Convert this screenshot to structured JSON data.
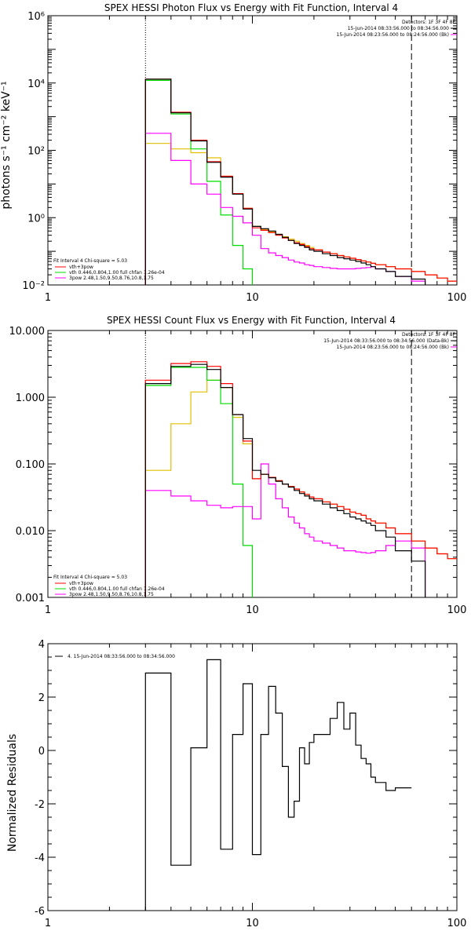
{
  "colors": {
    "data": "#000000",
    "model": "#ff0000",
    "vth": "#00dd00",
    "pow": "#ff00ff",
    "bk": "#e0c000",
    "axis": "#000000"
  },
  "chart_data": [
    {
      "type": "line",
      "title": "SPEX HESSI Photon Flux vs Energy with Fit Function, Interval 4",
      "ylabel": "photons s⁻¹ cm⁻² keV⁻¹",
      "xlabel": "",
      "xscale": "log",
      "yscale": "log",
      "xlim": [
        1,
        100
      ],
      "ylim": [
        0.01,
        1000000
      ],
      "xticks": [
        {
          "v": 1,
          "t": "1"
        },
        {
          "v": 10,
          "t": "10"
        },
        {
          "v": 100,
          "t": "100"
        }
      ],
      "yticks": [
        {
          "v": 0.01,
          "t": "10⁻²"
        },
        {
          "v": 1,
          "t": "10⁰"
        },
        {
          "v": 100,
          "t": "10²"
        },
        {
          "v": 10000,
          "t": "10⁴"
        },
        {
          "v": 1000000,
          "t": "10⁶"
        }
      ],
      "header": {
        "detectors": "Detectors: 1F 3F 4F 8F",
        "time1": "15-Jun-2014 08:33:56.000 to 08:34:56.000",
        "time2": "15-Jun-2014 08:23:56.000 to 08:24:56.000 (Bk)"
      },
      "fit_text": {
        "line1": "Fit Interval 4   Chi-square = 5.03",
        "items": [
          {
            "key": "model",
            "label": "vth+3pow"
          },
          {
            "key": "vth",
            "label": "vth 0.446,0.804,1.00  full chfan 1.26e-04"
          },
          {
            "key": "pow",
            "label": "3pow 2.48,1.50,9.50,8.76,10.8,1.75"
          }
        ]
      },
      "vlines": [
        {
          "x": 3,
          "style": "dotted"
        },
        {
          "x": 60,
          "style": "dashed"
        }
      ],
      "edges": [
        3,
        4,
        5,
        6,
        7,
        8,
        9,
        10,
        11,
        12,
        13,
        14,
        15,
        16,
        17,
        18,
        19,
        20,
        22,
        24,
        26,
        28,
        30,
        32,
        34,
        36,
        38,
        40,
        45,
        50,
        60,
        70,
        80,
        90,
        100
      ],
      "series": [
        {
          "key": "data",
          "values": [
            13000,
            1300,
            190,
            44,
            16,
            5,
            1.8,
            0.55,
            0.47,
            0.4,
            0.32,
            0.26,
            0.21,
            0.17,
            0.15,
            0.13,
            0.11,
            0.1,
            0.085,
            0.075,
            0.065,
            0.06,
            0.055,
            0.05,
            0.045,
            0.04,
            0.035,
            0.03,
            0.025,
            0.018,
            0.015,
            null,
            null,
            null
          ]
        },
        {
          "key": "model",
          "values": [
            13000,
            1350,
            200,
            46,
            17,
            5.2,
            1.9,
            0.5,
            0.42,
            0.36,
            0.3,
            0.25,
            0.21,
            0.18,
            0.16,
            0.14,
            0.12,
            0.11,
            0.095,
            0.085,
            0.075,
            0.068,
            0.062,
            0.057,
            0.052,
            0.048,
            0.044,
            0.04,
            0.035,
            0.03,
            0.025,
            0.02,
            0.016,
            0.013
          ]
        },
        {
          "key": "vth",
          "values": [
            12000,
            1200,
            110,
            12,
            1.2,
            0.15,
            0.03,
            null,
            null,
            null,
            null,
            null,
            null,
            null,
            null,
            null,
            null,
            null,
            null,
            null,
            null,
            null,
            null,
            null,
            null,
            null,
            null,
            null,
            null,
            null,
            null,
            null,
            null,
            null
          ]
        },
        {
          "key": "pow",
          "values": [
            320,
            50,
            10,
            5,
            2,
            1.1,
            0.7,
            0.3,
            0.12,
            0.09,
            0.075,
            0.065,
            0.055,
            0.048,
            0.045,
            0.04,
            0.038,
            0.035,
            0.033,
            0.031,
            0.03,
            0.03,
            0.03,
            0.031,
            0.032,
            0.033,
            0.035,
            0.03,
            0.025,
            0.018,
            0.013,
            null,
            null,
            null
          ]
        },
        {
          "key": "bk",
          "values": [
            160,
            110,
            85,
            60,
            17,
            5.2,
            1.9,
            0.55,
            0.45,
            0.38,
            0.32,
            0.27,
            0.23,
            0.2,
            0.17,
            0.15,
            0.13,
            0.11,
            0.095,
            0.085,
            0.075,
            0.068,
            0.062,
            0.057,
            0.052,
            0.048,
            0.044,
            0.04,
            0.035,
            0.03,
            0.025,
            0.02,
            0.016,
            0.013
          ]
        }
      ]
    },
    {
      "type": "line",
      "title": "SPEX HESSI Count Flux vs Energy with Fit Function, Interval 4",
      "ylabel": "",
      "xlabel": "",
      "xscale": "log",
      "yscale": "log",
      "xlim": [
        1,
        100
      ],
      "ylim": [
        0.001,
        10
      ],
      "xticks": [
        {
          "v": 1,
          "t": "1"
        },
        {
          "v": 10,
          "t": "10"
        },
        {
          "v": 100,
          "t": "100"
        }
      ],
      "yticks": [
        {
          "v": 0.001,
          "t": "0.001"
        },
        {
          "v": 0.01,
          "t": "0.010"
        },
        {
          "v": 0.1,
          "t": "0.100"
        },
        {
          "v": 1,
          "t": "1.000"
        },
        {
          "v": 10,
          "t": "10.000"
        }
      ],
      "header": {
        "detectors": "Detectors: 1F 3F 4F 8F",
        "time1": "15-Jun-2014 08:33:56.000 to 08:34:56.000 (Data-Bk)",
        "time2": "15-Jun-2014 08:23:56.000 to 08:24:56.000 (Bk)"
      },
      "fit_text": {
        "line1": "Fit Interval 4   Chi-square = 5.03",
        "items": [
          {
            "key": "model",
            "label": "vth+3pow"
          },
          {
            "key": "vth",
            "label": "vth 0.446,0.804,1.00  full chfan 1.26e-04"
          },
          {
            "key": "pow",
            "label": "3pow 2.48,1.50,9.50,8.76,10.8,1.75"
          }
        ]
      },
      "vlines": [
        {
          "x": 3,
          "style": "dotted"
        },
        {
          "x": 60,
          "style": "dashed"
        }
      ],
      "edges": [
        3,
        4,
        5,
        6,
        7,
        8,
        9,
        10,
        11,
        12,
        13,
        14,
        15,
        16,
        17,
        18,
        19,
        20,
        22,
        24,
        26,
        28,
        30,
        32,
        34,
        36,
        38,
        40,
        45,
        50,
        60,
        70,
        80,
        90,
        100
      ],
      "series": [
        {
          "key": "data",
          "values": [
            1.6,
            2.9,
            3.1,
            2.6,
            1.4,
            0.55,
            0.24,
            0.08,
            0.07,
            0.062,
            0.055,
            0.05,
            0.045,
            0.04,
            0.036,
            0.033,
            0.03,
            0.028,
            0.025,
            0.022,
            0.02,
            0.018,
            0.016,
            0.015,
            0.014,
            0.013,
            0.012,
            0.01,
            0.008,
            0.005,
            0.0035,
            null,
            null,
            null
          ]
        },
        {
          "key": "model",
          "values": [
            1.8,
            3.2,
            3.4,
            2.9,
            1.6,
            0.55,
            0.22,
            0.06,
            0.07,
            0.063,
            0.056,
            0.05,
            0.046,
            0.042,
            0.038,
            0.035,
            0.032,
            0.03,
            0.027,
            0.025,
            0.023,
            0.021,
            0.019,
            0.018,
            0.017,
            0.015,
            0.014,
            0.013,
            0.011,
            0.009,
            0.007,
            0.0055,
            0.0045,
            0.0038
          ]
        },
        {
          "key": "vth",
          "values": [
            1.5,
            2.8,
            2.8,
            1.8,
            0.8,
            0.05,
            0.006,
            null,
            null,
            null,
            null,
            null,
            null,
            null,
            null,
            null,
            null,
            null,
            null,
            null,
            null,
            null,
            null,
            null,
            null,
            null,
            null,
            null,
            null,
            null,
            null,
            null,
            null,
            null
          ]
        },
        {
          "key": "pow",
          "values": [
            0.04,
            0.033,
            0.028,
            0.024,
            0.022,
            0.023,
            0.023,
            0.015,
            0.1,
            0.05,
            0.03,
            0.022,
            0.016,
            0.013,
            0.011,
            0.009,
            0.008,
            0.007,
            0.0065,
            0.006,
            0.0055,
            0.005,
            0.005,
            0.0048,
            0.0047,
            0.0046,
            0.0047,
            0.005,
            0.006,
            0.007,
            0.0055,
            null,
            null,
            null
          ]
        },
        {
          "key": "bk",
          "values": [
            0.08,
            0.4,
            1.2,
            1.8,
            1.4,
            0.5,
            0.2,
            0.06,
            0.07,
            0.063,
            0.056,
            0.05,
            0.046,
            0.042,
            0.038,
            0.035,
            0.032,
            0.03,
            0.027,
            0.025,
            0.023,
            0.021,
            0.019,
            0.018,
            0.017,
            0.015,
            0.014,
            0.013,
            0.011,
            0.009,
            0.007,
            0.0055,
            0.0045,
            0.0038
          ]
        }
      ]
    },
    {
      "type": "line",
      "title": "",
      "ylabel": "Normalized Residuals",
      "xlabel": "",
      "xscale": "log",
      "yscale": "linear",
      "xlim": [
        1,
        100
      ],
      "ylim": [
        -6,
        4
      ],
      "xticks": [
        {
          "v": 1,
          "t": "1"
        },
        {
          "v": 10,
          "t": "10"
        },
        {
          "v": 100,
          "t": "100"
        }
      ],
      "yticks": [
        {
          "v": -6,
          "t": "-6"
        },
        {
          "v": -4,
          "t": "-4"
        },
        {
          "v": -2,
          "t": "-2"
        },
        {
          "v": 0,
          "t": "0"
        },
        {
          "v": 2,
          "t": "2"
        },
        {
          "v": 4,
          "t": "4"
        }
      ],
      "legend": {
        "label": "4. 15-Jun-2014 08:33:56.000 to 08:34:56.000"
      },
      "edges": [
        3,
        4,
        5,
        6,
        7,
        8,
        9,
        10,
        11,
        12,
        13,
        14,
        15,
        16,
        17,
        18,
        19,
        20,
        22,
        24,
        26,
        28,
        30,
        32,
        34,
        36,
        38,
        40,
        45,
        50,
        60
      ],
      "series": [
        {
          "key": "data",
          "values": [
            2.9,
            -4.3,
            0.1,
            3.4,
            -3.7,
            0.6,
            2.5,
            -3.9,
            0.6,
            2.4,
            1.4,
            -0.6,
            -2.5,
            -1.9,
            0.1,
            -0.5,
            0.3,
            0.6,
            0.6,
            1.2,
            1.8,
            0.8,
            1.4,
            0.2,
            -0.3,
            -0.5,
            -1.0,
            -1.2,
            -1.5,
            -1.4
          ]
        }
      ]
    }
  ]
}
